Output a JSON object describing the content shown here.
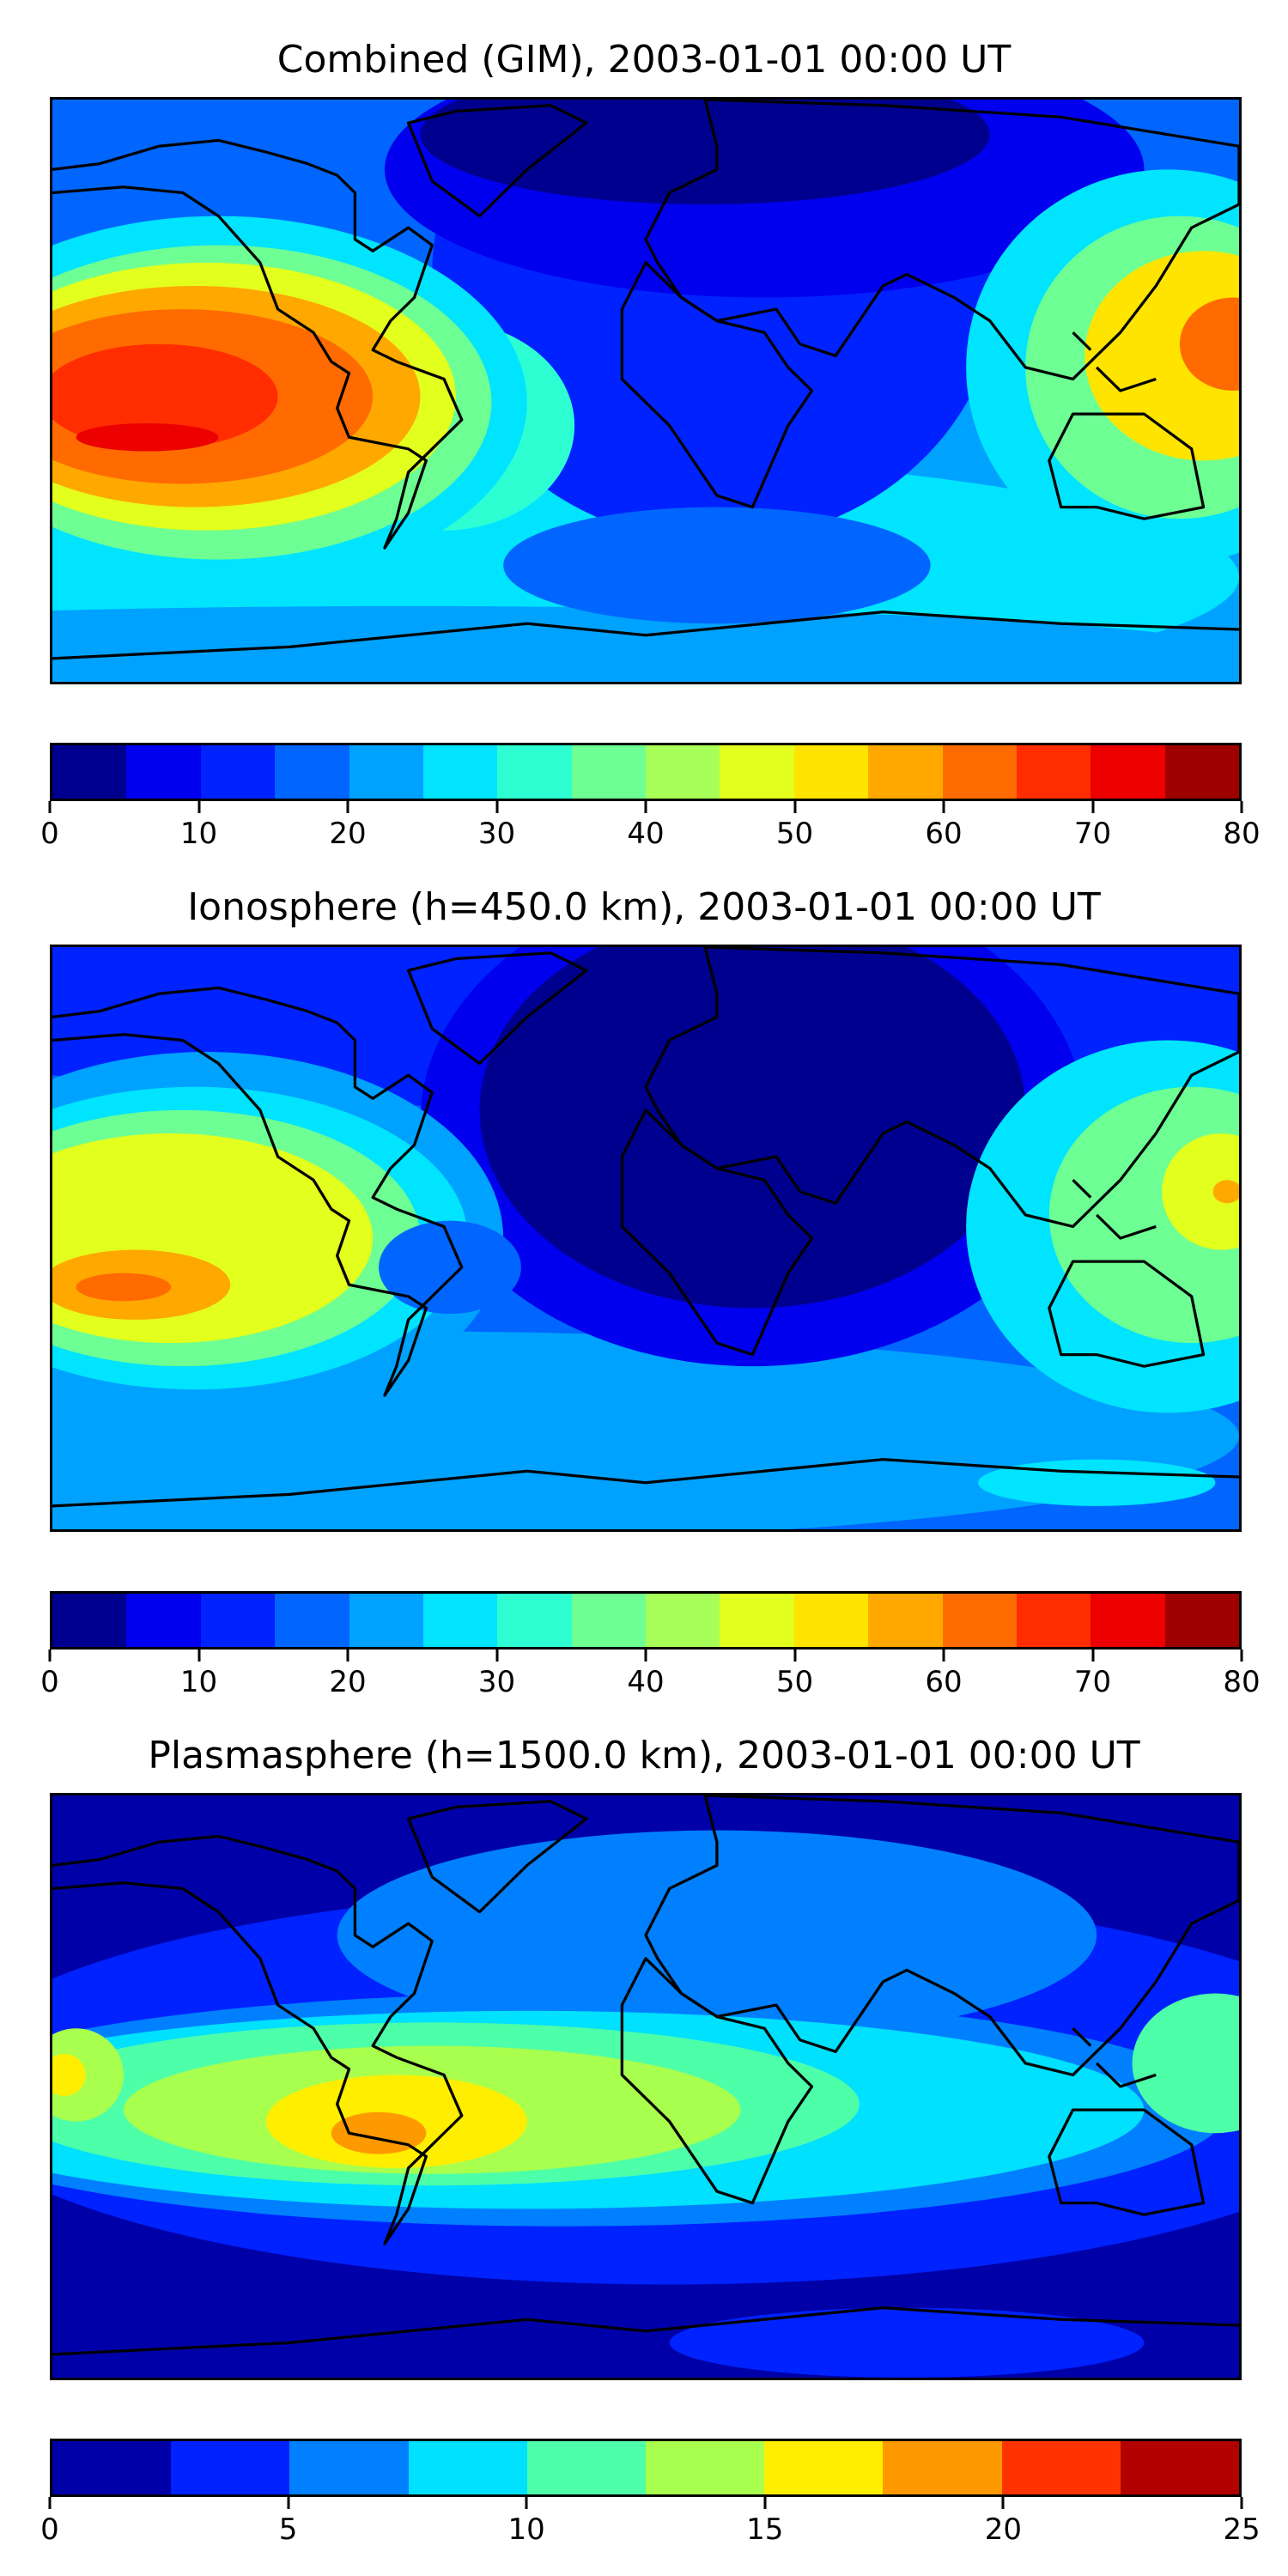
{
  "panels": [
    {
      "id": "combined",
      "title": "Combined (GIM), 2003-01-01 00:00 UT",
      "colorbar": {
        "min": 0,
        "max": 80,
        "step": 5,
        "tick_values": [
          0,
          10,
          20,
          30,
          40,
          50,
          60,
          70,
          80
        ],
        "tick_labels": [
          "0",
          "10",
          "20",
          "30",
          "40",
          "50",
          "60",
          "70",
          "80"
        ],
        "colors": [
          "#00008f",
          "#0000ee",
          "#0022ff",
          "#0066ff",
          "#00a2ff",
          "#00e4ff",
          "#2effd2",
          "#6dff93",
          "#a8ff57",
          "#e2ff1d",
          "#ffe400",
          "#ffa800",
          "#ff6b00",
          "#ff2d00",
          "#ec0000",
          "#9e0000"
        ]
      },
      "chart_data": {
        "type": "heatmap",
        "projection": "equirectangular",
        "levels": [
          0,
          5,
          10,
          15,
          20,
          25,
          30,
          35,
          40,
          45,
          50,
          55,
          60,
          65,
          70,
          75,
          80
        ],
        "features": [
          {
            "region": "Central Pacific (west of South America)",
            "approx_peak": 72
          },
          {
            "region": "Western Pacific / east of Philippines",
            "approx_peak": 62
          },
          {
            "region": "North Atlantic / Europe / Africa",
            "approx_value": 8
          },
          {
            "region": "Southern high latitudes",
            "approx_value": 25
          }
        ]
      }
    },
    {
      "id": "ionosphere",
      "title": "Ionosphere  (h=450.0 km), 2003-01-01 00:00 UT",
      "colorbar": {
        "min": 0,
        "max": 80,
        "step": 5,
        "tick_values": [
          0,
          10,
          20,
          30,
          40,
          50,
          60,
          70,
          80
        ],
        "tick_labels": [
          "0",
          "10",
          "20",
          "30",
          "40",
          "50",
          "60",
          "70",
          "80"
        ],
        "colors": [
          "#00008f",
          "#0000ee",
          "#0022ff",
          "#0066ff",
          "#00a2ff",
          "#00e4ff",
          "#2effd2",
          "#6dff93",
          "#a8ff57",
          "#e2ff1d",
          "#ffe400",
          "#ffa800",
          "#ff6b00",
          "#ff2d00",
          "#ec0000",
          "#9e0000"
        ]
      },
      "chart_data": {
        "type": "heatmap",
        "projection": "equirectangular",
        "levels": [
          0,
          5,
          10,
          15,
          20,
          25,
          30,
          35,
          40,
          45,
          50,
          55,
          60,
          65,
          70,
          75,
          80
        ],
        "features": [
          {
            "region": "Central Pacific (west of South America)",
            "approx_peak": 62
          },
          {
            "region": "Western Pacific / east of Philippines",
            "approx_peak": 55
          },
          {
            "region": "Europe / Africa / Asia",
            "approx_value": 3
          },
          {
            "region": "Southern high latitudes",
            "approx_value": 22
          }
        ]
      }
    },
    {
      "id": "plasmasphere",
      "title": "Plasmasphere (h=1500.0 km), 2003-01-01 00:00 UT",
      "colorbar": {
        "min": 0,
        "max": 25,
        "step": 2.5,
        "tick_values": [
          0,
          5,
          10,
          15,
          20,
          25
        ],
        "tick_labels": [
          "0",
          "5",
          "10",
          "15",
          "20",
          "25"
        ],
        "colors": [
          "#0000a8",
          "#0022ff",
          "#0080ff",
          "#00e0ff",
          "#4dffa8",
          "#a8ff4d",
          "#ffee00",
          "#ff9900",
          "#ff3300",
          "#b30000"
        ]
      },
      "chart_data": {
        "type": "heatmap",
        "projection": "equirectangular",
        "levels": [
          0,
          2.5,
          5,
          7.5,
          10,
          12.5,
          15,
          17.5,
          20,
          22.5,
          25
        ],
        "features": [
          {
            "region": "Central South America",
            "approx_peak": 18
          },
          {
            "region": "Low latitudes belt",
            "approx_value": 12
          },
          {
            "region": "Polar regions",
            "approx_value": 1
          }
        ]
      }
    }
  ]
}
